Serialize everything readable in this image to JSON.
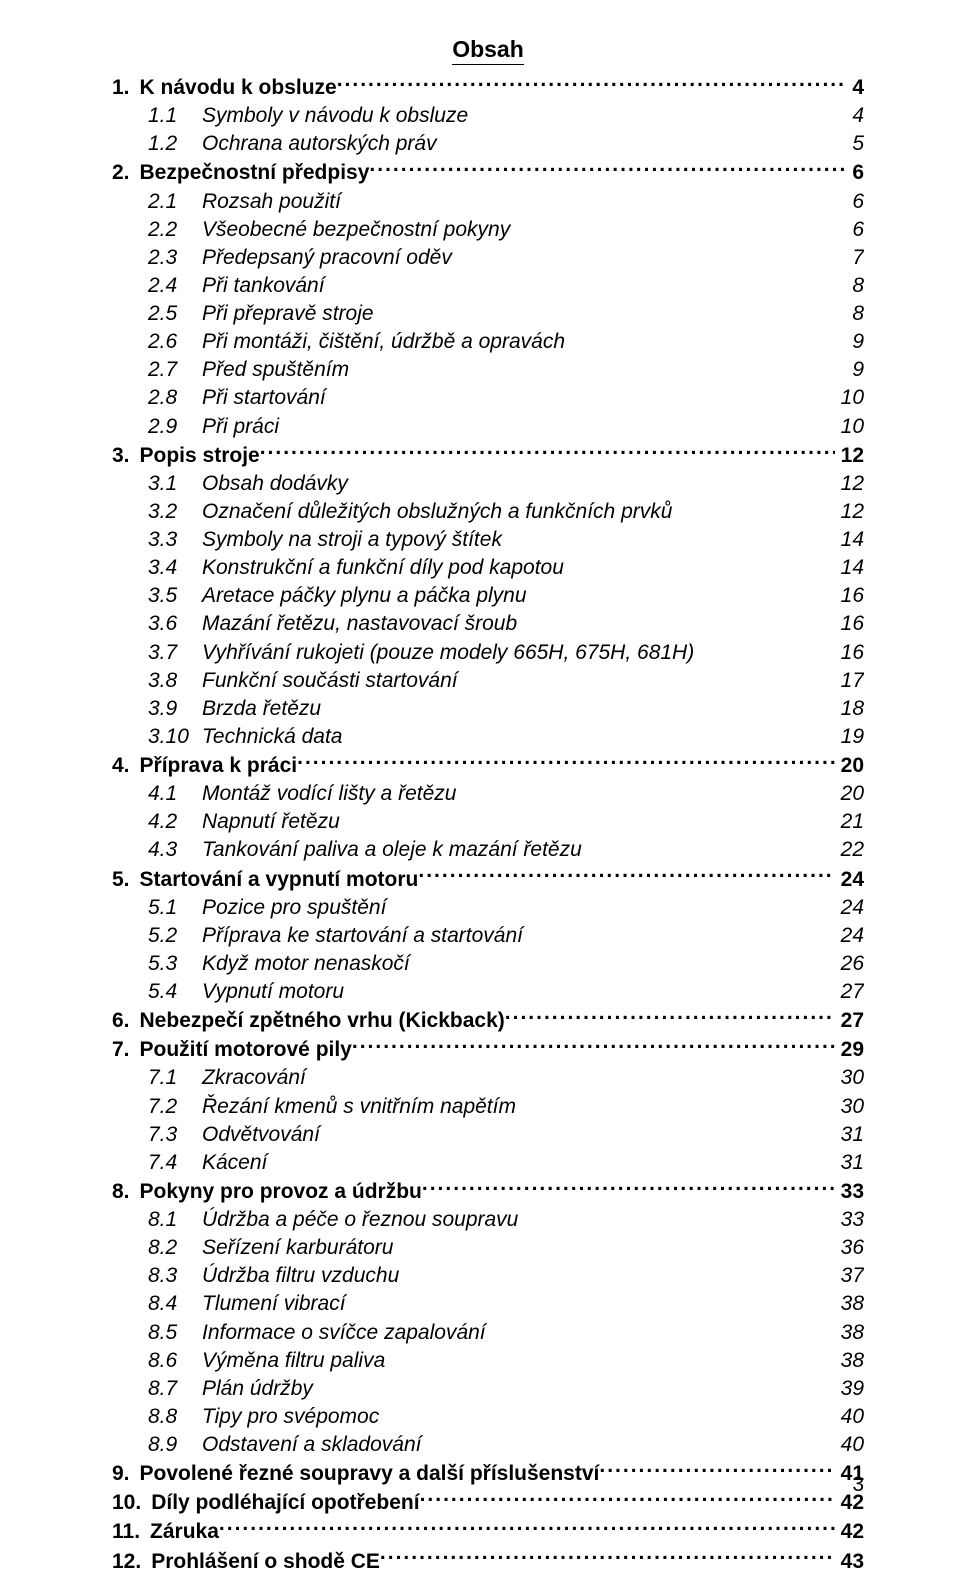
{
  "title": "Obsah",
  "page_number": "3",
  "colors": {
    "text": "#000000",
    "background": "#ffffff"
  },
  "typography": {
    "family": "Arial",
    "section_size_pt": 16,
    "sub_size_pt": 16
  },
  "entries": [
    {
      "type": "section",
      "num": "1.",
      "label": "K návodu k obsluze",
      "page": "4"
    },
    {
      "type": "sub",
      "num": "1.1",
      "label": "Symboly v návodu k obsluze",
      "page": "4"
    },
    {
      "type": "sub",
      "num": "1.2",
      "label": "Ochrana autorských práv",
      "page": "5"
    },
    {
      "type": "section",
      "num": "2.",
      "label": "Bezpečnostní předpisy",
      "page": "6"
    },
    {
      "type": "sub",
      "num": "2.1",
      "label": "Rozsah použití",
      "page": "6"
    },
    {
      "type": "sub",
      "num": "2.2",
      "label": "Všeobecné bezpečnostní pokyny",
      "page": "6"
    },
    {
      "type": "sub",
      "num": "2.3",
      "label": "Předepsaný pracovní oděv",
      "page": "7"
    },
    {
      "type": "sub",
      "num": "2.4",
      "label": "Při tankování",
      "page": "8"
    },
    {
      "type": "sub",
      "num": "2.5",
      "label": "Při přepravě stroje",
      "page": "8"
    },
    {
      "type": "sub",
      "num": "2.6",
      "label": "Při montáži, čištění, údržbě a opravách",
      "page": "9"
    },
    {
      "type": "sub",
      "num": "2.7",
      "label": "Před spuštěním",
      "page": "9"
    },
    {
      "type": "sub",
      "num": "2.8",
      "label": "Při startování",
      "page": "10"
    },
    {
      "type": "sub",
      "num": "2.9",
      "label": "Při práci",
      "page": "10"
    },
    {
      "type": "section",
      "num": "3.",
      "label": "Popis stroje",
      "page": "12"
    },
    {
      "type": "sub",
      "num": "3.1",
      "label": "Obsah dodávky",
      "page": "12"
    },
    {
      "type": "sub",
      "num": "3.2",
      "label": "Označení důležitých obslužných a funkčních prvků",
      "page": "12"
    },
    {
      "type": "sub",
      "num": "3.3",
      "label": "Symboly na stroji a typový štítek",
      "page": "14"
    },
    {
      "type": "sub",
      "num": "3.4",
      "label": "Konstrukční a funkční díly pod kapotou",
      "page": "14"
    },
    {
      "type": "sub",
      "num": "3.5",
      "label": "Aretace páčky plynu a páčka plynu",
      "page": "16"
    },
    {
      "type": "sub",
      "num": "3.6",
      "label": "Mazání řetězu, nastavovací šroub",
      "page": "16"
    },
    {
      "type": "sub",
      "num": "3.7",
      "label": "Vyhřívání rukojeti (pouze modely 665H, 675H, 681H)",
      "page": "16"
    },
    {
      "type": "sub",
      "num": "3.8",
      "label": "Funkční součásti startování",
      "page": "17"
    },
    {
      "type": "sub",
      "num": "3.9",
      "label": "Brzda řetězu",
      "page": "18"
    },
    {
      "type": "sub",
      "num": "3.10",
      "label": "Technická data",
      "page": "19"
    },
    {
      "type": "section",
      "num": "4.",
      "label": "Příprava k práci",
      "page": "20"
    },
    {
      "type": "sub",
      "num": "4.1",
      "label": "Montáž vodící lišty a řetězu",
      "page": "20"
    },
    {
      "type": "sub",
      "num": "4.2",
      "label": "Napnutí řetězu",
      "page": "21"
    },
    {
      "type": "sub",
      "num": "4.3",
      "label": "Tankování paliva a oleje k mazání řetězu",
      "page": "22"
    },
    {
      "type": "section",
      "num": "5.",
      "label": "Startování a vypnutí motoru",
      "page": "24"
    },
    {
      "type": "sub",
      "num": "5.1",
      "label": "Pozice pro spuštění",
      "page": "24"
    },
    {
      "type": "sub",
      "num": "5.2",
      "label": "Příprava ke startování a startování",
      "page": "24"
    },
    {
      "type": "sub",
      "num": "5.3",
      "label": "Když motor nenaskočí",
      "page": "26"
    },
    {
      "type": "sub",
      "num": "5.4",
      "label": "Vypnutí motoru",
      "page": "27"
    },
    {
      "type": "section",
      "num": "6.",
      "label": "Nebezpečí zpětného vrhu (Kickback)",
      "page": "27"
    },
    {
      "type": "section",
      "num": "7.",
      "label": "Použití motorové pily",
      "page": "29"
    },
    {
      "type": "sub",
      "num": "7.1",
      "label": "Zkracování",
      "page": "30"
    },
    {
      "type": "sub",
      "num": "7.2",
      "label": "Řezání kmenů s vnitřním napětím",
      "page": "30"
    },
    {
      "type": "sub",
      "num": "7.3",
      "label": "Odvětvování",
      "page": "31"
    },
    {
      "type": "sub",
      "num": "7.4",
      "label": "Kácení",
      "page": "31"
    },
    {
      "type": "section",
      "num": "8.",
      "label": "Pokyny pro provoz a údržbu",
      "page": "33"
    },
    {
      "type": "sub",
      "num": "8.1",
      "label": "Údržba a péče o řeznou soupravu",
      "page": "33"
    },
    {
      "type": "sub",
      "num": "8.2",
      "label": "Seřízení karburátoru",
      "page": "36"
    },
    {
      "type": "sub",
      "num": "8.3",
      "label": "Údržba filtru vzduchu",
      "page": "37"
    },
    {
      "type": "sub",
      "num": "8.4",
      "label": "Tlumení vibrací",
      "page": "38"
    },
    {
      "type": "sub",
      "num": "8.5",
      "label": "Informace o svíčce zapalování",
      "page": "38"
    },
    {
      "type": "sub",
      "num": "8.6",
      "label": "Výměna filtru paliva",
      "page": "38"
    },
    {
      "type": "sub",
      "num": "8.7",
      "label": "Plán údržby",
      "page": "39"
    },
    {
      "type": "sub",
      "num": "8.8",
      "label": "Tipy pro svépomoc",
      "page": "40"
    },
    {
      "type": "sub",
      "num": "8.9",
      "label": "Odstavení a skladování",
      "page": "40"
    },
    {
      "type": "section",
      "num": "9.",
      "label": "Povolené řezné soupravy a další příslušenství",
      "page": "41"
    },
    {
      "type": "section",
      "num": "10.",
      "label": "Díly podléhající opotřebení",
      "page": "42"
    },
    {
      "type": "section",
      "num": "11.",
      "label": "Záruka",
      "page": "42"
    },
    {
      "type": "section",
      "num": "12.",
      "label": "Prohlášení o shodě CE",
      "page": "43"
    }
  ]
}
